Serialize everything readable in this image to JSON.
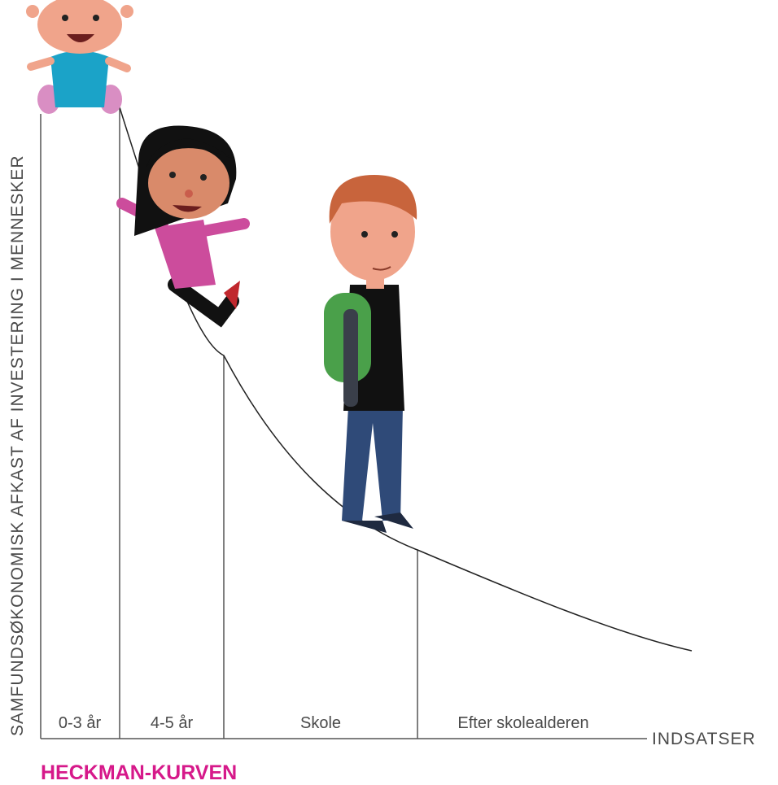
{
  "title": "HECKMAN-KURVEN",
  "y_axis_label": "SAMFUNDSØKONOMISK AFKAST AF INVESTERING I MENNESKER",
  "x_axis_label": "INDSATSER",
  "stages": [
    "0-3 år",
    "4-5 år",
    "Skole",
    "Efter skolealderen"
  ]
}
